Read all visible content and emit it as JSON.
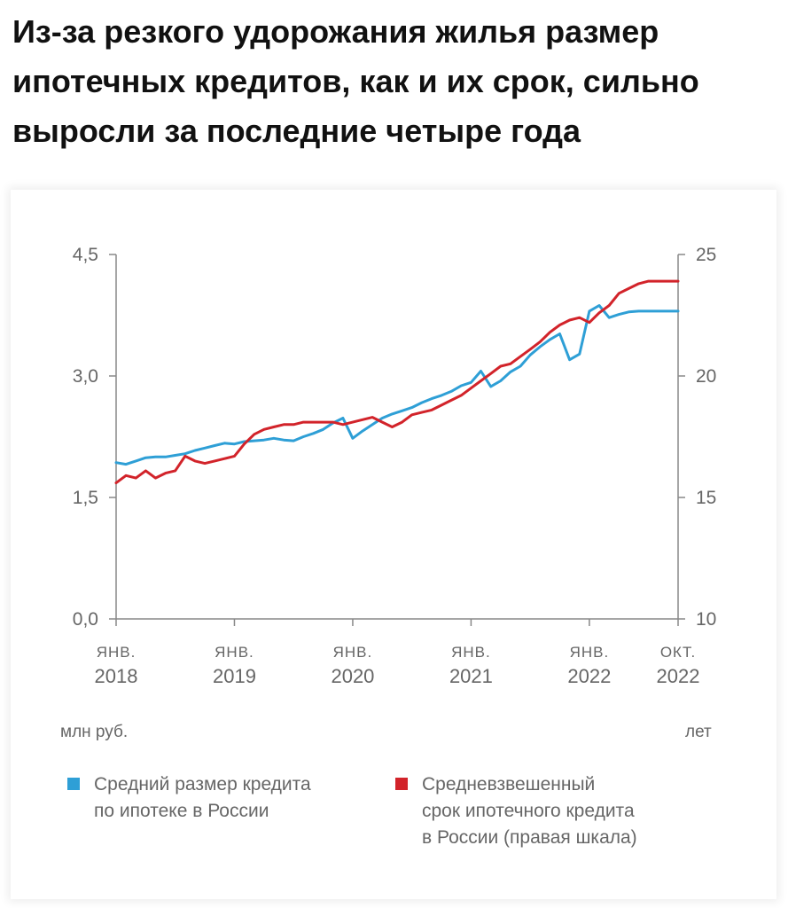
{
  "headline": "Из-за резкого удорожания жилья размер ипотечных кредитов, как и их срок, сильно выросли за последние четыре года",
  "chart_data": {
    "type": "line",
    "x_ticks": [
      {
        "month": "ЯНВ.",
        "year": "2018",
        "x": 2018.0
      },
      {
        "month": "ЯНВ.",
        "year": "2019",
        "x": 2019.0
      },
      {
        "month": "ЯНВ.",
        "year": "2020",
        "x": 2020.0
      },
      {
        "month": "ЯНВ.",
        "year": "2021",
        "x": 2021.0
      },
      {
        "month": "ЯНВ.",
        "year": "2022",
        "x": 2022.0
      },
      {
        "month": "ОКТ.",
        "year": "2022",
        "x": 2022.75
      }
    ],
    "x_range": [
      2018.0,
      2022.75
    ],
    "y_left": {
      "unit": "млн руб.",
      "range": [
        0,
        4.5
      ],
      "ticks": [
        "0,0",
        "1,5",
        "3,0",
        "4,5"
      ]
    },
    "y_right": {
      "unit": "лет",
      "range": [
        10,
        25
      ],
      "ticks": [
        "10",
        "15",
        "20",
        "25"
      ]
    },
    "grid": false,
    "legend_position": "bottom",
    "series": [
      {
        "name": "Средний размер кредита по ипотеке в России",
        "color": "#2e9fd6",
        "axis": "left",
        "x": [
          2018.0,
          2018.083,
          2018.167,
          2018.25,
          2018.333,
          2018.417,
          2018.5,
          2018.583,
          2018.667,
          2018.75,
          2018.833,
          2018.917,
          2019.0,
          2019.083,
          2019.167,
          2019.25,
          2019.333,
          2019.417,
          2019.5,
          2019.583,
          2019.667,
          2019.75,
          2019.833,
          2019.917,
          2020.0,
          2020.083,
          2020.167,
          2020.25,
          2020.333,
          2020.417,
          2020.5,
          2020.583,
          2020.667,
          2020.75,
          2020.833,
          2020.917,
          2021.0,
          2021.083,
          2021.167,
          2021.25,
          2021.333,
          2021.417,
          2021.5,
          2021.583,
          2021.667,
          2021.75,
          2021.833,
          2021.917,
          2022.0,
          2022.083,
          2022.167,
          2022.25,
          2022.333,
          2022.417,
          2022.5,
          2022.583,
          2022.667,
          2022.75
        ],
        "values": [
          1.93,
          1.91,
          1.95,
          1.99,
          2.0,
          2.0,
          2.02,
          2.04,
          2.08,
          2.11,
          2.14,
          2.17,
          2.16,
          2.19,
          2.2,
          2.21,
          2.23,
          2.21,
          2.2,
          2.25,
          2.29,
          2.34,
          2.42,
          2.48,
          2.23,
          2.32,
          2.4,
          2.48,
          2.53,
          2.57,
          2.61,
          2.67,
          2.72,
          2.76,
          2.81,
          2.88,
          2.92,
          3.06,
          2.87,
          2.94,
          3.05,
          3.12,
          3.26,
          3.36,
          3.45,
          3.52,
          3.2,
          3.27,
          3.8,
          3.87,
          3.72,
          3.76,
          3.79,
          3.8,
          3.8,
          3.8,
          3.8,
          3.8
        ]
      },
      {
        "name": "Средневзвешенный срок ипотечного кредита в России (правая шкала)",
        "color": "#d2232a",
        "axis": "right",
        "x": [
          2018.0,
          2018.083,
          2018.167,
          2018.25,
          2018.333,
          2018.417,
          2018.5,
          2018.583,
          2018.667,
          2018.75,
          2018.833,
          2018.917,
          2019.0,
          2019.083,
          2019.167,
          2019.25,
          2019.333,
          2019.417,
          2019.5,
          2019.583,
          2019.667,
          2019.75,
          2019.833,
          2019.917,
          2020.0,
          2020.083,
          2020.167,
          2020.25,
          2020.333,
          2020.417,
          2020.5,
          2020.583,
          2020.667,
          2020.75,
          2020.833,
          2020.917,
          2021.0,
          2021.083,
          2021.167,
          2021.25,
          2021.333,
          2021.417,
          2021.5,
          2021.583,
          2021.667,
          2021.75,
          2021.833,
          2021.917,
          2022.0,
          2022.083,
          2022.167,
          2022.25,
          2022.333,
          2022.417,
          2022.5,
          2022.583,
          2022.667,
          2022.75
        ],
        "values": [
          15.6,
          15.9,
          15.8,
          16.1,
          15.8,
          16.0,
          16.1,
          16.7,
          16.5,
          16.4,
          16.5,
          16.6,
          16.7,
          17.2,
          17.6,
          17.8,
          17.9,
          18.0,
          18.0,
          18.1,
          18.1,
          18.1,
          18.1,
          18.0,
          18.1,
          18.2,
          18.3,
          18.1,
          17.9,
          18.1,
          18.4,
          18.5,
          18.6,
          18.8,
          19.0,
          19.2,
          19.5,
          19.8,
          20.1,
          20.4,
          20.5,
          20.8,
          21.1,
          21.4,
          21.8,
          22.1,
          22.3,
          22.4,
          22.2,
          22.6,
          22.9,
          23.4,
          23.6,
          23.8,
          23.9,
          23.9,
          23.9,
          23.9
        ]
      }
    ]
  },
  "units": {
    "left": "млн руб.",
    "right": "лет"
  },
  "legend": [
    {
      "color": "#2e9fd6",
      "lines": [
        "Средний размер кредита",
        "по ипотеке в России"
      ]
    },
    {
      "color": "#d2232a",
      "lines": [
        "Средневзвешенный",
        "срок ипотечного кредита",
        "в России (правая шкала)"
      ]
    }
  ]
}
